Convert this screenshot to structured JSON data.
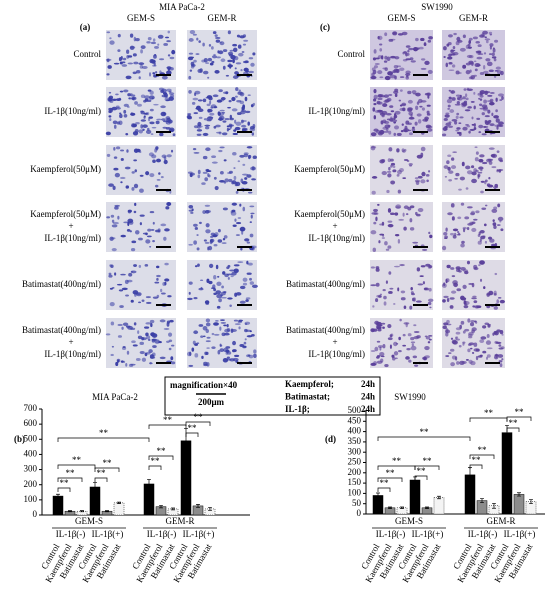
{
  "figure": {
    "micrographs": [
      {
        "panel": "(a)",
        "title": "MIA PaCa-2",
        "columns": [
          "GEM-S",
          "GEM-R"
        ]
      },
      {
        "panel": "(c)",
        "title": "SW1990",
        "columns": [
          "GEM-S",
          "GEM-R"
        ]
      }
    ],
    "rows": [
      [
        "Control"
      ],
      [
        "IL-1β(10ng/ml)"
      ],
      [
        "Kaempferol(50μM)"
      ],
      [
        "Kaempferol(50μM)",
        "+",
        "IL-1β(10ng/ml)"
      ],
      [
        "Batimastat(400ng/ml)"
      ],
      [
        "Batimastat(400ng/ml)",
        "+",
        "IL-1β(10ng/ml)"
      ]
    ],
    "legend_box": {
      "magnification": "magnification×40",
      "scale": "200μm",
      "times": [
        {
          "label": "Kaempferol;",
          "time": "24h"
        },
        {
          "label": "Batimastat;",
          "time": "24h"
        },
        {
          "label": "IL-1β;",
          "time": "24h"
        }
      ]
    }
  },
  "chart_data": [
    {
      "type": "bar",
      "panel": "(b)",
      "title": "MIA PaCa-2",
      "groups": [
        {
          "name": "GEM-S",
          "subgroups": [
            "IL-1β(-)",
            "IL-1β(+)"
          ]
        },
        {
          "name": "GEM-R",
          "subgroups": [
            "IL-1β(-)",
            "IL-1β(+)"
          ]
        }
      ],
      "series": [
        {
          "name": "Control",
          "color": "#000000",
          "values": [
            125,
            185,
            205,
            490
          ],
          "errors": [
            12,
            30,
            30,
            80
          ]
        },
        {
          "name": "Kaempferol",
          "color": "#8c8c8c",
          "values": [
            25,
            25,
            55,
            60
          ],
          "errors": [
            4,
            4,
            8,
            10
          ]
        },
        {
          "name": "Batimastat",
          "color": "#f4f4f4",
          "values": [
            25,
            80,
            40,
            40
          ],
          "errors": [
            4,
            5,
            6,
            10
          ]
        }
      ],
      "ylim": [
        0,
        700
      ],
      "yticks": [
        0,
        100,
        200,
        300,
        400,
        500,
        600,
        700
      ],
      "significance": [
        "**",
        "**",
        "**",
        "**",
        "**",
        "**",
        "**",
        "**",
        "**",
        "**",
        "**"
      ]
    },
    {
      "type": "bar",
      "panel": "(d)",
      "title": "SW1990",
      "groups": [
        {
          "name": "GEM-S",
          "subgroups": [
            "IL-1β(-)",
            "IL-1β(+)"
          ]
        },
        {
          "name": "GEM-R",
          "subgroups": [
            "IL-1β(-)",
            "IL-1β(+)"
          ]
        }
      ],
      "series": [
        {
          "name": "Control",
          "color": "#000000",
          "values": [
            90,
            165,
            190,
            395
          ],
          "errors": [
            12,
            15,
            35,
            35
          ]
        },
        {
          "name": "Kaempferol",
          "color": "#8c8c8c",
          "values": [
            30,
            30,
            65,
            95
          ],
          "errors": [
            4,
            4,
            10,
            8
          ]
        },
        {
          "name": "Batimastat",
          "color": "#f4f4f4",
          "values": [
            30,
            80,
            40,
            60
          ],
          "errors": [
            4,
            6,
            12,
            10
          ]
        }
      ],
      "ylim": [
        0,
        500
      ],
      "yticks": [
        0,
        50,
        100,
        150,
        200,
        250,
        300,
        350,
        400,
        450,
        500
      ],
      "significance": [
        "**",
        "**",
        "**",
        "**",
        "**",
        "**",
        "**",
        "**",
        "**",
        "**",
        "**"
      ]
    }
  ]
}
